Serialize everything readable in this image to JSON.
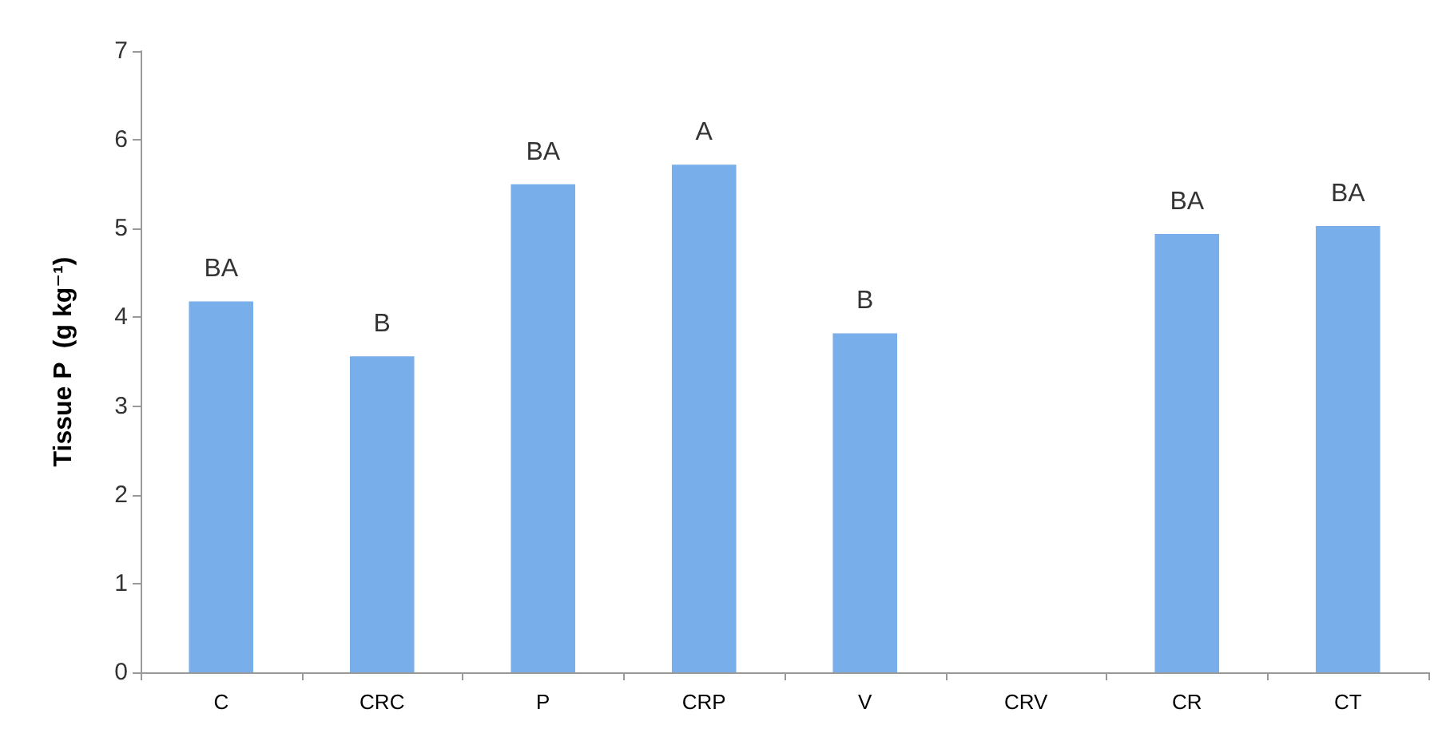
{
  "chart_data": {
    "type": "bar",
    "ylabel": "Tissue P  (g kg⁻¹)",
    "categories": [
      "C",
      "CRC",
      "P",
      "CRP",
      "V",
      "CRV",
      "CR",
      "CT"
    ],
    "values": [
      4.18,
      3.56,
      5.5,
      5.72,
      3.82,
      null,
      4.94,
      5.03
    ],
    "color": "#78aeea",
    "ylim": [
      0,
      7
    ],
    "yticks": [
      0,
      1,
      2,
      3,
      4,
      5,
      6,
      7
    ],
    "grid": false,
    "annotations": [
      {
        "text": "BA",
        "x": "C",
        "y": 4.18
      },
      {
        "text": "B",
        "x": "CRC",
        "y": 3.56
      },
      {
        "text": "BA",
        "x": "P",
        "y": 5.5
      },
      {
        "text": "A",
        "x": "CRP",
        "y": 5.72
      },
      {
        "text": "B",
        "x": "V",
        "y": 3.82
      },
      {
        "text": "BA",
        "x": "CR",
        "y": 4.94
      },
      {
        "text": "BA",
        "x": "CT",
        "y": 5.03
      }
    ]
  }
}
